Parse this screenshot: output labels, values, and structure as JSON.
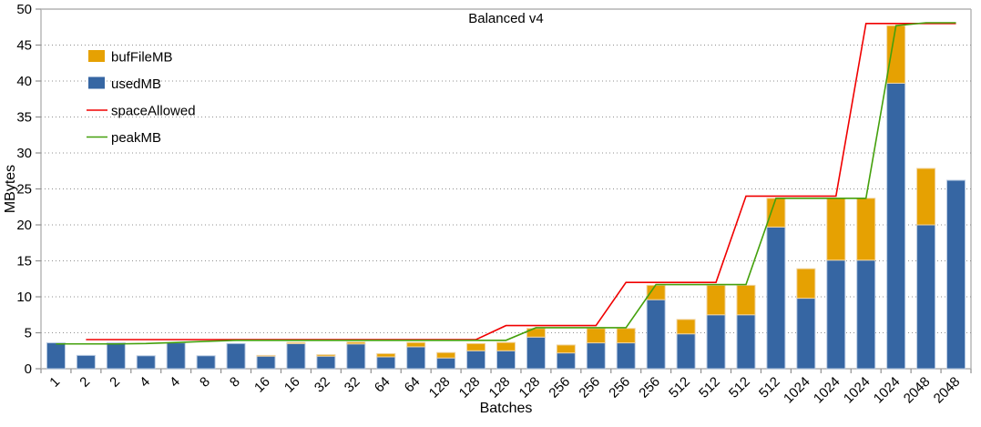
{
  "chart_data": {
    "type": "bar",
    "subtype": "stacked-bars-with-lines",
    "title": "Balanced v4",
    "xlabel": "Batches",
    "ylabel": "MBytes",
    "ylim": [
      0,
      50
    ],
    "ytick_step": 5,
    "yticks": [
      0,
      5,
      10,
      15,
      20,
      25,
      30,
      35,
      40,
      45,
      50
    ],
    "grid": "dotted-horizontal",
    "legend_position": "top-left-inside",
    "categories": [
      "1",
      "2",
      "2",
      "4",
      "4",
      "8",
      "8",
      "16",
      "16",
      "32",
      "32",
      "64",
      "64",
      "128",
      "128",
      "128",
      "128",
      "256",
      "256",
      "256",
      "256",
      "512",
      "512",
      "512",
      "512",
      "1024",
      "1024",
      "1024",
      "1024",
      "2048",
      "2048"
    ],
    "series": [
      {
        "name": "bufFileMB",
        "type": "bar",
        "stack_order": 2,
        "color": "#E6A102",
        "border": "#F0D39E",
        "values": [
          0,
          0,
          0,
          0,
          0,
          0,
          0,
          0.1,
          0.15,
          0.2,
          0.25,
          0.45,
          0.6,
          0.75,
          1.0,
          1.15,
          1.2,
          1.1,
          2.0,
          2.0,
          2.0,
          2.0,
          4.1,
          4.1,
          4.0,
          4.1,
          8.6,
          8.6,
          8.0,
          7.85,
          0
        ]
      },
      {
        "name": "usedMB",
        "type": "bar",
        "stack_order": 1,
        "color": "#3666A3",
        "border": "#B7C9E2",
        "values": [
          3.6,
          1.85,
          3.6,
          1.8,
          3.6,
          1.8,
          3.5,
          1.75,
          3.5,
          1.75,
          3.45,
          1.65,
          3.05,
          1.5,
          2.5,
          2.5,
          4.4,
          2.2,
          3.6,
          3.6,
          9.6,
          4.85,
          7.5,
          7.5,
          19.7,
          9.8,
          15.1,
          15.1,
          39.7,
          20.0,
          26.2
        ]
      },
      {
        "name": "spaceAllowed",
        "type": "line",
        "color": "#F00000",
        "values": [
          null,
          4.05,
          4.05,
          4.05,
          4.05,
          4.05,
          4.05,
          4.05,
          4.05,
          4.05,
          4.05,
          4.05,
          4.05,
          4.05,
          4.05,
          6,
          6,
          6,
          6,
          12,
          12,
          12,
          12,
          24,
          24,
          24,
          24,
          48,
          48,
          48,
          48
        ]
      },
      {
        "name": "peakMB",
        "type": "line",
        "color": "#44A00C",
        "values": [
          3.45,
          3.45,
          3.45,
          3.5,
          3.65,
          3.8,
          3.95,
          3.95,
          3.95,
          3.95,
          3.95,
          3.95,
          3.95,
          3.95,
          3.95,
          3.95,
          5.7,
          5.7,
          5.7,
          5.7,
          11.7,
          11.7,
          11.7,
          11.7,
          23.7,
          23.7,
          23.7,
          23.7,
          47.7,
          48.1,
          48.1
        ]
      }
    ],
    "legend": [
      {
        "label": "bufFileMB",
        "swatch": "box",
        "color": "#E6A102"
      },
      {
        "label": "usedMB",
        "swatch": "box",
        "color": "#3666A3"
      },
      {
        "label": "spaceAllowed",
        "swatch": "line",
        "color": "#F00000"
      },
      {
        "label": "peakMB",
        "swatch": "line",
        "color": "#44A00C"
      }
    ],
    "colors": {
      "grid": "#8f8f8f",
      "axis": "#b3b3b3",
      "tick": "#8f8f8f",
      "text": "#000000",
      "background": "#ffffff"
    }
  }
}
